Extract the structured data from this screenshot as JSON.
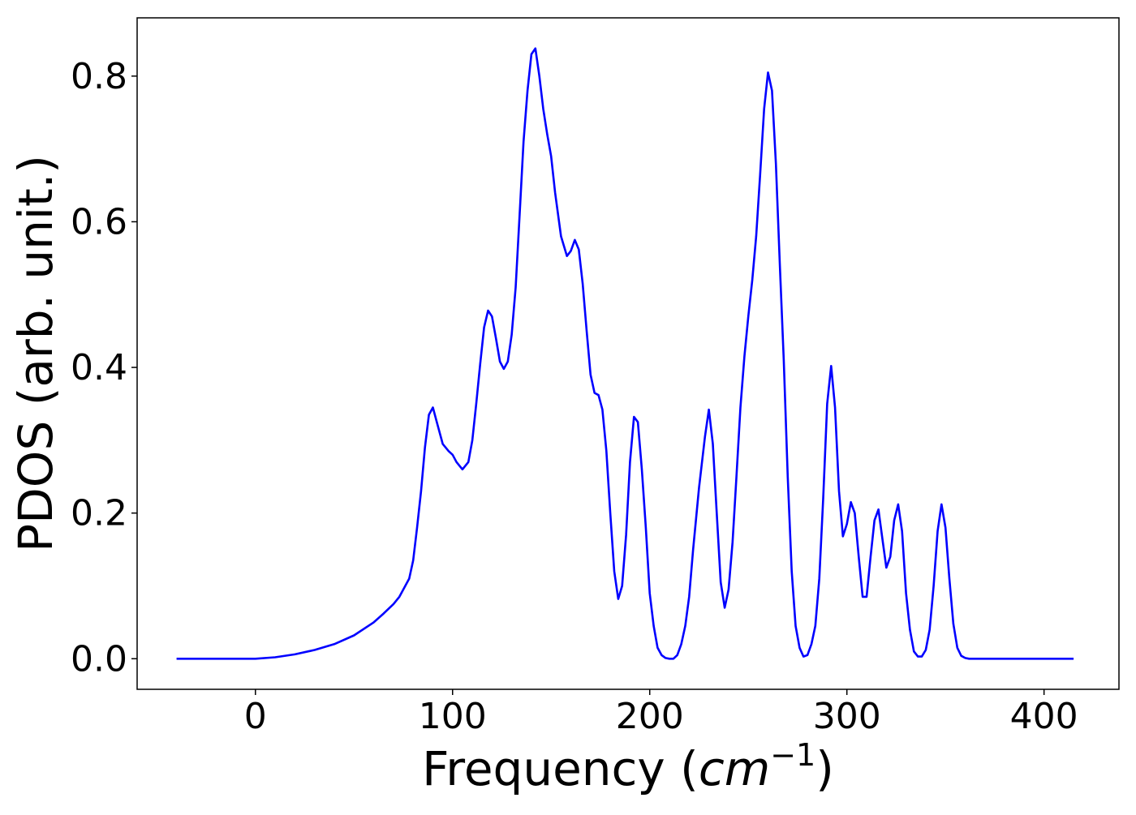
{
  "chart_data": {
    "type": "line",
    "xlabel_text": "Frequency (",
    "xlabel_math": "cm",
    "xlabel_sup": "−1",
    "xlabel_close": ")",
    "ylabel": "PDOS (arb. unit.)",
    "xlim": [
      -60,
      438
    ],
    "ylim": [
      -0.042,
      0.88
    ],
    "xticks": [
      0,
      100,
      200,
      300,
      400
    ],
    "xtick_labels": [
      "0",
      "100",
      "200",
      "300",
      "400"
    ],
    "yticks": [
      0.0,
      0.2,
      0.4,
      0.6,
      0.8
    ],
    "ytick_labels": [
      "0.0",
      "0.2",
      "0.4",
      "0.6",
      "0.8"
    ],
    "grid": false,
    "series": [
      {
        "color": "#0000ff",
        "x": [
          -40,
          -20,
          0,
          10,
          20,
          30,
          40,
          50,
          60,
          65,
          70,
          73,
          75,
          78,
          80,
          82,
          84,
          86,
          88,
          90,
          92,
          95,
          98,
          100,
          102,
          105,
          108,
          110,
          112,
          114,
          116,
          118,
          120,
          122,
          124,
          126,
          128,
          130,
          132,
          134,
          136,
          138,
          140,
          142,
          144,
          146,
          148,
          150,
          152,
          155,
          158,
          160,
          162,
          164,
          166,
          168,
          170,
          172,
          174,
          176,
          178,
          180,
          182,
          184,
          186,
          188,
          190,
          192,
          194,
          196,
          198,
          200,
          202,
          204,
          206,
          208,
          210,
          212,
          214,
          216,
          218,
          220,
          222,
          225,
          228,
          230,
          232,
          234,
          236,
          238,
          240,
          242,
          244,
          246,
          248,
          250,
          252,
          254,
          256,
          258,
          260,
          262,
          264,
          266,
          268,
          270,
          272,
          274,
          276,
          278,
          280,
          282,
          284,
          286,
          288,
          290,
          292,
          294,
          296,
          298,
          300,
          302,
          304,
          306,
          308,
          310,
          312,
          314,
          316,
          318,
          320,
          322,
          324,
          326,
          328,
          330,
          332,
          334,
          336,
          338,
          340,
          342,
          344,
          346,
          348,
          350,
          352,
          354,
          356,
          358,
          360,
          362,
          364,
          366,
          368,
          370,
          372,
          374,
          376,
          378,
          380,
          382,
          384,
          386,
          388,
          390,
          395,
          400,
          405,
          415
        ],
        "values": [
          0.0,
          0.0,
          0.0,
          0.002,
          0.006,
          0.012,
          0.02,
          0.032,
          0.05,
          0.062,
          0.075,
          0.085,
          0.095,
          0.11,
          0.135,
          0.18,
          0.23,
          0.29,
          0.335,
          0.345,
          0.325,
          0.295,
          0.285,
          0.28,
          0.27,
          0.26,
          0.27,
          0.3,
          0.35,
          0.405,
          0.455,
          0.478,
          0.47,
          0.44,
          0.408,
          0.398,
          0.408,
          0.445,
          0.51,
          0.61,
          0.71,
          0.78,
          0.83,
          0.838,
          0.8,
          0.755,
          0.72,
          0.69,
          0.64,
          0.58,
          0.553,
          0.56,
          0.575,
          0.562,
          0.515,
          0.45,
          0.39,
          0.365,
          0.362,
          0.342,
          0.285,
          0.2,
          0.12,
          0.082,
          0.1,
          0.17,
          0.27,
          0.332,
          0.325,
          0.26,
          0.18,
          0.09,
          0.045,
          0.015,
          0.005,
          0.001,
          0.0,
          0.0,
          0.005,
          0.02,
          0.045,
          0.085,
          0.15,
          0.235,
          0.305,
          0.342,
          0.295,
          0.2,
          0.105,
          0.07,
          0.095,
          0.16,
          0.25,
          0.345,
          0.415,
          0.47,
          0.52,
          0.58,
          0.665,
          0.755,
          0.805,
          0.78,
          0.68,
          0.54,
          0.41,
          0.25,
          0.12,
          0.045,
          0.015,
          0.003,
          0.005,
          0.02,
          0.045,
          0.11,
          0.22,
          0.35,
          0.402,
          0.345,
          0.23,
          0.168,
          0.185,
          0.215,
          0.2,
          0.14,
          0.085,
          0.085,
          0.14,
          0.19,
          0.205,
          0.165,
          0.125,
          0.14,
          0.19,
          0.212,
          0.175,
          0.09,
          0.04,
          0.01,
          0.003,
          0.003,
          0.012,
          0.04,
          0.1,
          0.175,
          0.212,
          0.18,
          0.11,
          0.048,
          0.015,
          0.004,
          0.001,
          0.0,
          0.0,
          0.0,
          0.0,
          0.0,
          0.0,
          0.0,
          0.0,
          0.0,
          0.0,
          0.0,
          0.0,
          0.0,
          0.0,
          0.0,
          0.0,
          0.0,
          0.0,
          0.0
        ]
      }
    ]
  }
}
